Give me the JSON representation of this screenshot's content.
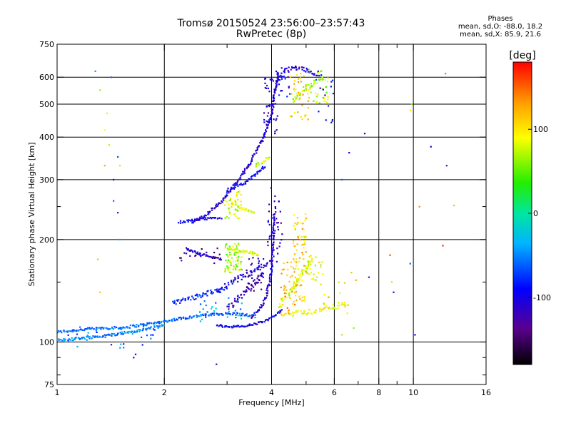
{
  "header": {
    "title_line1": "Tromsø 20150524 23:56:00–23:57:43",
    "title_line2": "RwPretec (8p)"
  },
  "stats": {
    "heading": "Phases",
    "line_o": "mean, sd,O: -88.0, 18.2",
    "line_x": "mean, sd,X:  85.9, 21.6"
  },
  "chart_data": {
    "type": "scatter",
    "xlabel": "Frequency [MHz]",
    "ylabel": "Stationary phase Virtual Height [km]",
    "xscale": "log",
    "yscale": "log",
    "xlim": [
      1,
      16
    ],
    "ylim": [
      75,
      750
    ],
    "x_ticks": [
      1,
      2,
      4,
      6,
      8,
      10,
      16
    ],
    "x_tick_labels": [
      "1",
      "2",
      "4",
      "6",
      "8",
      "10",
      "16"
    ],
    "x_minor": [
      3,
      5,
      7,
      9
    ],
    "y_ticks": [
      75,
      100,
      200,
      300,
      400,
      500,
      600,
      750
    ],
    "y_tick_labels": [
      "75",
      "100",
      "200",
      "300",
      "400",
      "500",
      "600",
      "750"
    ],
    "y_minor": [
      80,
      90,
      150,
      250
    ],
    "grid_x": [
      2,
      4,
      6,
      8,
      10
    ],
    "grid_y": [
      100,
      200,
      300,
      400,
      500,
      600
    ],
    "grid": true,
    "colorbar": {
      "label": "[deg]",
      "range": [
        -180,
        180
      ],
      "ticks": [
        -100,
        0,
        100
      ],
      "tick_labels": [
        "-100",
        "0",
        "100"
      ],
      "colormap": "rainbow"
    },
    "traces": [
      {
        "name": "",
        "phase": -60,
        "spread": 0.006,
        "points": [
          [
            1,
            107
          ],
          [
            1.1,
            108
          ],
          [
            1.2,
            109
          ],
          [
            1.35,
            110
          ],
          [
            1.5,
            110
          ],
          [
            1.6,
            111
          ],
          [
            1.8,
            113
          ],
          [
            2,
            115
          ],
          [
            2.3,
            118
          ],
          [
            2.6,
            120
          ],
          [
            2.9,
            121
          ],
          [
            3.2,
            121
          ],
          [
            3.6,
            119
          ]
        ]
      },
      {
        "name": "",
        "phase": -50,
        "spread": 0.006,
        "points": [
          [
            1,
            101
          ],
          [
            1.1,
            102
          ],
          [
            1.2,
            103
          ],
          [
            1.35,
            104
          ],
          [
            1.5,
            106
          ],
          [
            1.7,
            108
          ],
          [
            2,
            112
          ]
        ]
      },
      {
        "name": "",
        "phase": -95,
        "spread": 0.005,
        "points": [
          [
            2.8,
            112
          ],
          [
            3,
            111
          ],
          [
            3.3,
            111
          ],
          [
            3.6,
            113
          ],
          [
            3.9,
            116
          ],
          [
            4.1,
            120
          ],
          [
            4.3,
            124
          ]
        ]
      },
      {
        "name": "",
        "phase": -110,
        "spread": 0.006,
        "points": [
          [
            3.5,
            118
          ],
          [
            3.7,
            125
          ],
          [
            3.85,
            135
          ],
          [
            3.95,
            150
          ],
          [
            4,
            165
          ],
          [
            4.03,
            185
          ],
          [
            4.05,
            210
          ],
          [
            4.07,
            240
          ]
        ]
      },
      {
        "name": "",
        "phase": -105,
        "spread": 0.006,
        "points": [
          [
            2.4,
            225
          ],
          [
            2.6,
            235
          ],
          [
            2.9,
            260
          ],
          [
            3.2,
            295
          ],
          [
            3.5,
            340
          ],
          [
            3.8,
            400
          ],
          [
            4,
            470
          ],
          [
            4.1,
            560
          ],
          [
            4.2,
            620
          ]
        ]
      },
      {
        "name": "",
        "phase": -95,
        "spread": 0.007,
        "points": [
          [
            3,
            280
          ],
          [
            3.3,
            290
          ],
          [
            3.6,
            310
          ],
          [
            3.85,
            330
          ]
        ]
      },
      {
        "name": "",
        "phase": -110,
        "spread": 0.004,
        "points": [
          [
            2.3,
            188
          ],
          [
            2.5,
            182
          ],
          [
            2.7,
            178
          ],
          [
            2.9,
            175
          ]
        ]
      },
      {
        "name": "",
        "phase": -100,
        "spread": 0.005,
        "points": [
          [
            2.2,
            225
          ],
          [
            2.4,
            228
          ],
          [
            2.6,
            230
          ],
          [
            2.9,
            232
          ]
        ]
      },
      {
        "name": "",
        "phase": -100,
        "spread": 0.012,
        "points": [
          [
            2.8,
            140
          ],
          [
            3.1,
            150
          ],
          [
            3.4,
            158
          ],
          [
            3.7,
            165
          ],
          [
            3.9,
            170
          ]
        ]
      },
      {
        "name": "",
        "phase": -80,
        "spread": 0.01,
        "points": [
          [
            2.1,
            130
          ],
          [
            2.4,
            135
          ],
          [
            2.7,
            140
          ],
          [
            2.9,
            142
          ]
        ]
      },
      {
        "name": "",
        "phase": -115,
        "spread": 0.012,
        "points": [
          [
            3,
            125
          ],
          [
            3.2,
            133
          ],
          [
            3.4,
            142
          ],
          [
            3.6,
            150
          ],
          [
            3.8,
            160
          ]
        ]
      },
      {
        "name": "",
        "phase": 85,
        "spread": 0.005,
        "points": [
          [
            3.1,
            255
          ],
          [
            3.2,
            250
          ],
          [
            3.4,
            245
          ],
          [
            3.6,
            240
          ]
        ]
      },
      {
        "name": "",
        "phase": 80,
        "spread": 0.006,
        "points": [
          [
            3,
            188
          ],
          [
            3.2,
            186
          ],
          [
            3.4,
            184
          ],
          [
            3.6,
            182
          ],
          [
            3.7,
            180
          ]
        ]
      },
      {
        "name": "",
        "phase": 75,
        "spread": 0.006,
        "points": [
          [
            3.6,
            330
          ],
          [
            3.8,
            340
          ],
          [
            3.95,
            350
          ]
        ]
      },
      {
        "name": "",
        "phase": 80,
        "spread": 0.01,
        "points": [
          [
            4.2,
            128
          ],
          [
            4.5,
            140
          ],
          [
            4.8,
            155
          ],
          [
            5,
            165
          ],
          [
            5.2,
            175
          ]
        ]
      },
      {
        "name": "",
        "phase": 90,
        "spread": 0.012,
        "points": [
          [
            4.3,
            120
          ],
          [
            4.7,
            122
          ],
          [
            5.2,
            123
          ],
          [
            5.8,
            126
          ],
          [
            6.5,
            130
          ]
        ]
      },
      {
        "name": "",
        "phase": 65,
        "spread": 0.01,
        "points": [
          [
            4.6,
            510
          ],
          [
            4.8,
            540
          ],
          [
            5,
            560
          ],
          [
            5.3,
            580
          ],
          [
            5.6,
            600
          ]
        ]
      },
      {
        "name": "",
        "phase": -110,
        "spread": 0.01,
        "points": [
          [
            4.3,
            620
          ],
          [
            4.6,
            640
          ],
          [
            5,
            630
          ],
          [
            5.5,
            610
          ]
        ]
      }
    ],
    "clusters": [
      {
        "name": "",
        "x": [
          2.95,
          3.3
        ],
        "y": [
          160,
          195
        ],
        "count": 70,
        "phase": 70
      },
      {
        "name": "",
        "x": [
          2.95,
          3.3
        ],
        "y": [
          230,
          280
        ],
        "count": 40,
        "phase": 80
      },
      {
        "name": "",
        "x": [
          4.6,
          5.0
        ],
        "y": [
          130,
          240
        ],
        "count": 80,
        "phase": 110
      },
      {
        "name": "",
        "x": [
          4.25,
          4.7
        ],
        "y": [
          120,
          175
        ],
        "count": 40,
        "phase": 125
      },
      {
        "name": "",
        "x": [
          5.0,
          5.6
        ],
        "y": [
          150,
          180
        ],
        "count": 25,
        "phase": 90
      },
      {
        "name": "",
        "x": [
          4.5,
          5.1
        ],
        "y": [
          450,
          630
        ],
        "count": 40,
        "phase": 110
      },
      {
        "name": "",
        "x": [
          5.1,
          5.8
        ],
        "y": [
          500,
          640
        ],
        "count": 30,
        "phase": 70
      },
      {
        "name": "",
        "x": [
          4.1,
          4.5
        ],
        "y": [
          520,
          650
        ],
        "count": 25,
        "phase": -100
      },
      {
        "name": "",
        "x": [
          3.8,
          4.2
        ],
        "y": [
          400,
          600
        ],
        "count": 40,
        "phase": -110
      },
      {
        "name": "",
        "x": [
          5.3,
          6.0
        ],
        "y": [
          440,
          640
        ],
        "count": 15,
        "phase": -95
      },
      {
        "name": "",
        "x": [
          3.9,
          4.3
        ],
        "y": [
          170,
          290
        ],
        "count": 40,
        "phase": -115
      },
      {
        "name": "",
        "x": [
          3.4,
          3.8
        ],
        "y": [
          140,
          180
        ],
        "count": 30,
        "phase": -125
      },
      {
        "name": "",
        "x": [
          2.2,
          2.9
        ],
        "y": [
          170,
          190
        ],
        "count": 20,
        "phase": -135
      },
      {
        "name": "",
        "x": [
          1.05,
          1.9
        ],
        "y": [
          95,
          112
        ],
        "count": 30,
        "phase": -60
      },
      {
        "name": "",
        "x": [
          2.5,
          3.3
        ],
        "y": [
          115,
          135
        ],
        "count": 30,
        "phase": -40
      },
      {
        "name": "",
        "x": [
          5.5,
          6.6
        ],
        "y": [
          120,
          150
        ],
        "count": 15,
        "phase": 100
      }
    ],
    "scattered_points": [
      [
        1.28,
        625,
        -40
      ],
      [
        1.32,
        550,
        60
      ],
      [
        1.42,
        600,
        -60
      ],
      [
        1.38,
        470,
        80
      ],
      [
        1.36,
        420,
        90
      ],
      [
        1.4,
        380,
        70
      ],
      [
        1.36,
        330,
        130
      ],
      [
        1.5,
        330,
        110
      ],
      [
        1.48,
        350,
        -70
      ],
      [
        1.44,
        300,
        -100
      ],
      [
        1.44,
        260,
        -60
      ],
      [
        1.48,
        240,
        -80
      ],
      [
        1.5,
        200,
        -40
      ],
      [
        1.3,
        175,
        60
      ],
      [
        1.32,
        140,
        120
      ],
      [
        1.64,
        90,
        -100
      ],
      [
        1.66,
        92,
        -90
      ],
      [
        1.48,
        75,
        -80
      ],
      [
        2.8,
        86,
        -120
      ],
      [
        7.3,
        410,
        -110
      ],
      [
        6.6,
        360,
        -90
      ],
      [
        6.3,
        300,
        -60
      ],
      [
        9.9,
        500,
        60
      ],
      [
        9.8,
        480,
        100
      ],
      [
        10.4,
        250,
        140
      ],
      [
        11.2,
        375,
        -100
      ],
      [
        12.4,
        330,
        -80
      ],
      [
        12.3,
        615,
        150
      ],
      [
        13,
        252,
        120
      ],
      [
        12.1,
        192,
        170
      ],
      [
        8.6,
        180,
        160
      ],
      [
        8.7,
        150,
        110
      ],
      [
        8.8,
        140,
        -110
      ],
      [
        9.8,
        170,
        -60
      ],
      [
        10.1,
        105,
        -90
      ],
      [
        6.8,
        110,
        60
      ],
      [
        6.3,
        105,
        70
      ],
      [
        6.7,
        160,
        120
      ],
      [
        7.5,
        155,
        -80
      ],
      [
        6.9,
        152,
        130
      ]
    ]
  }
}
